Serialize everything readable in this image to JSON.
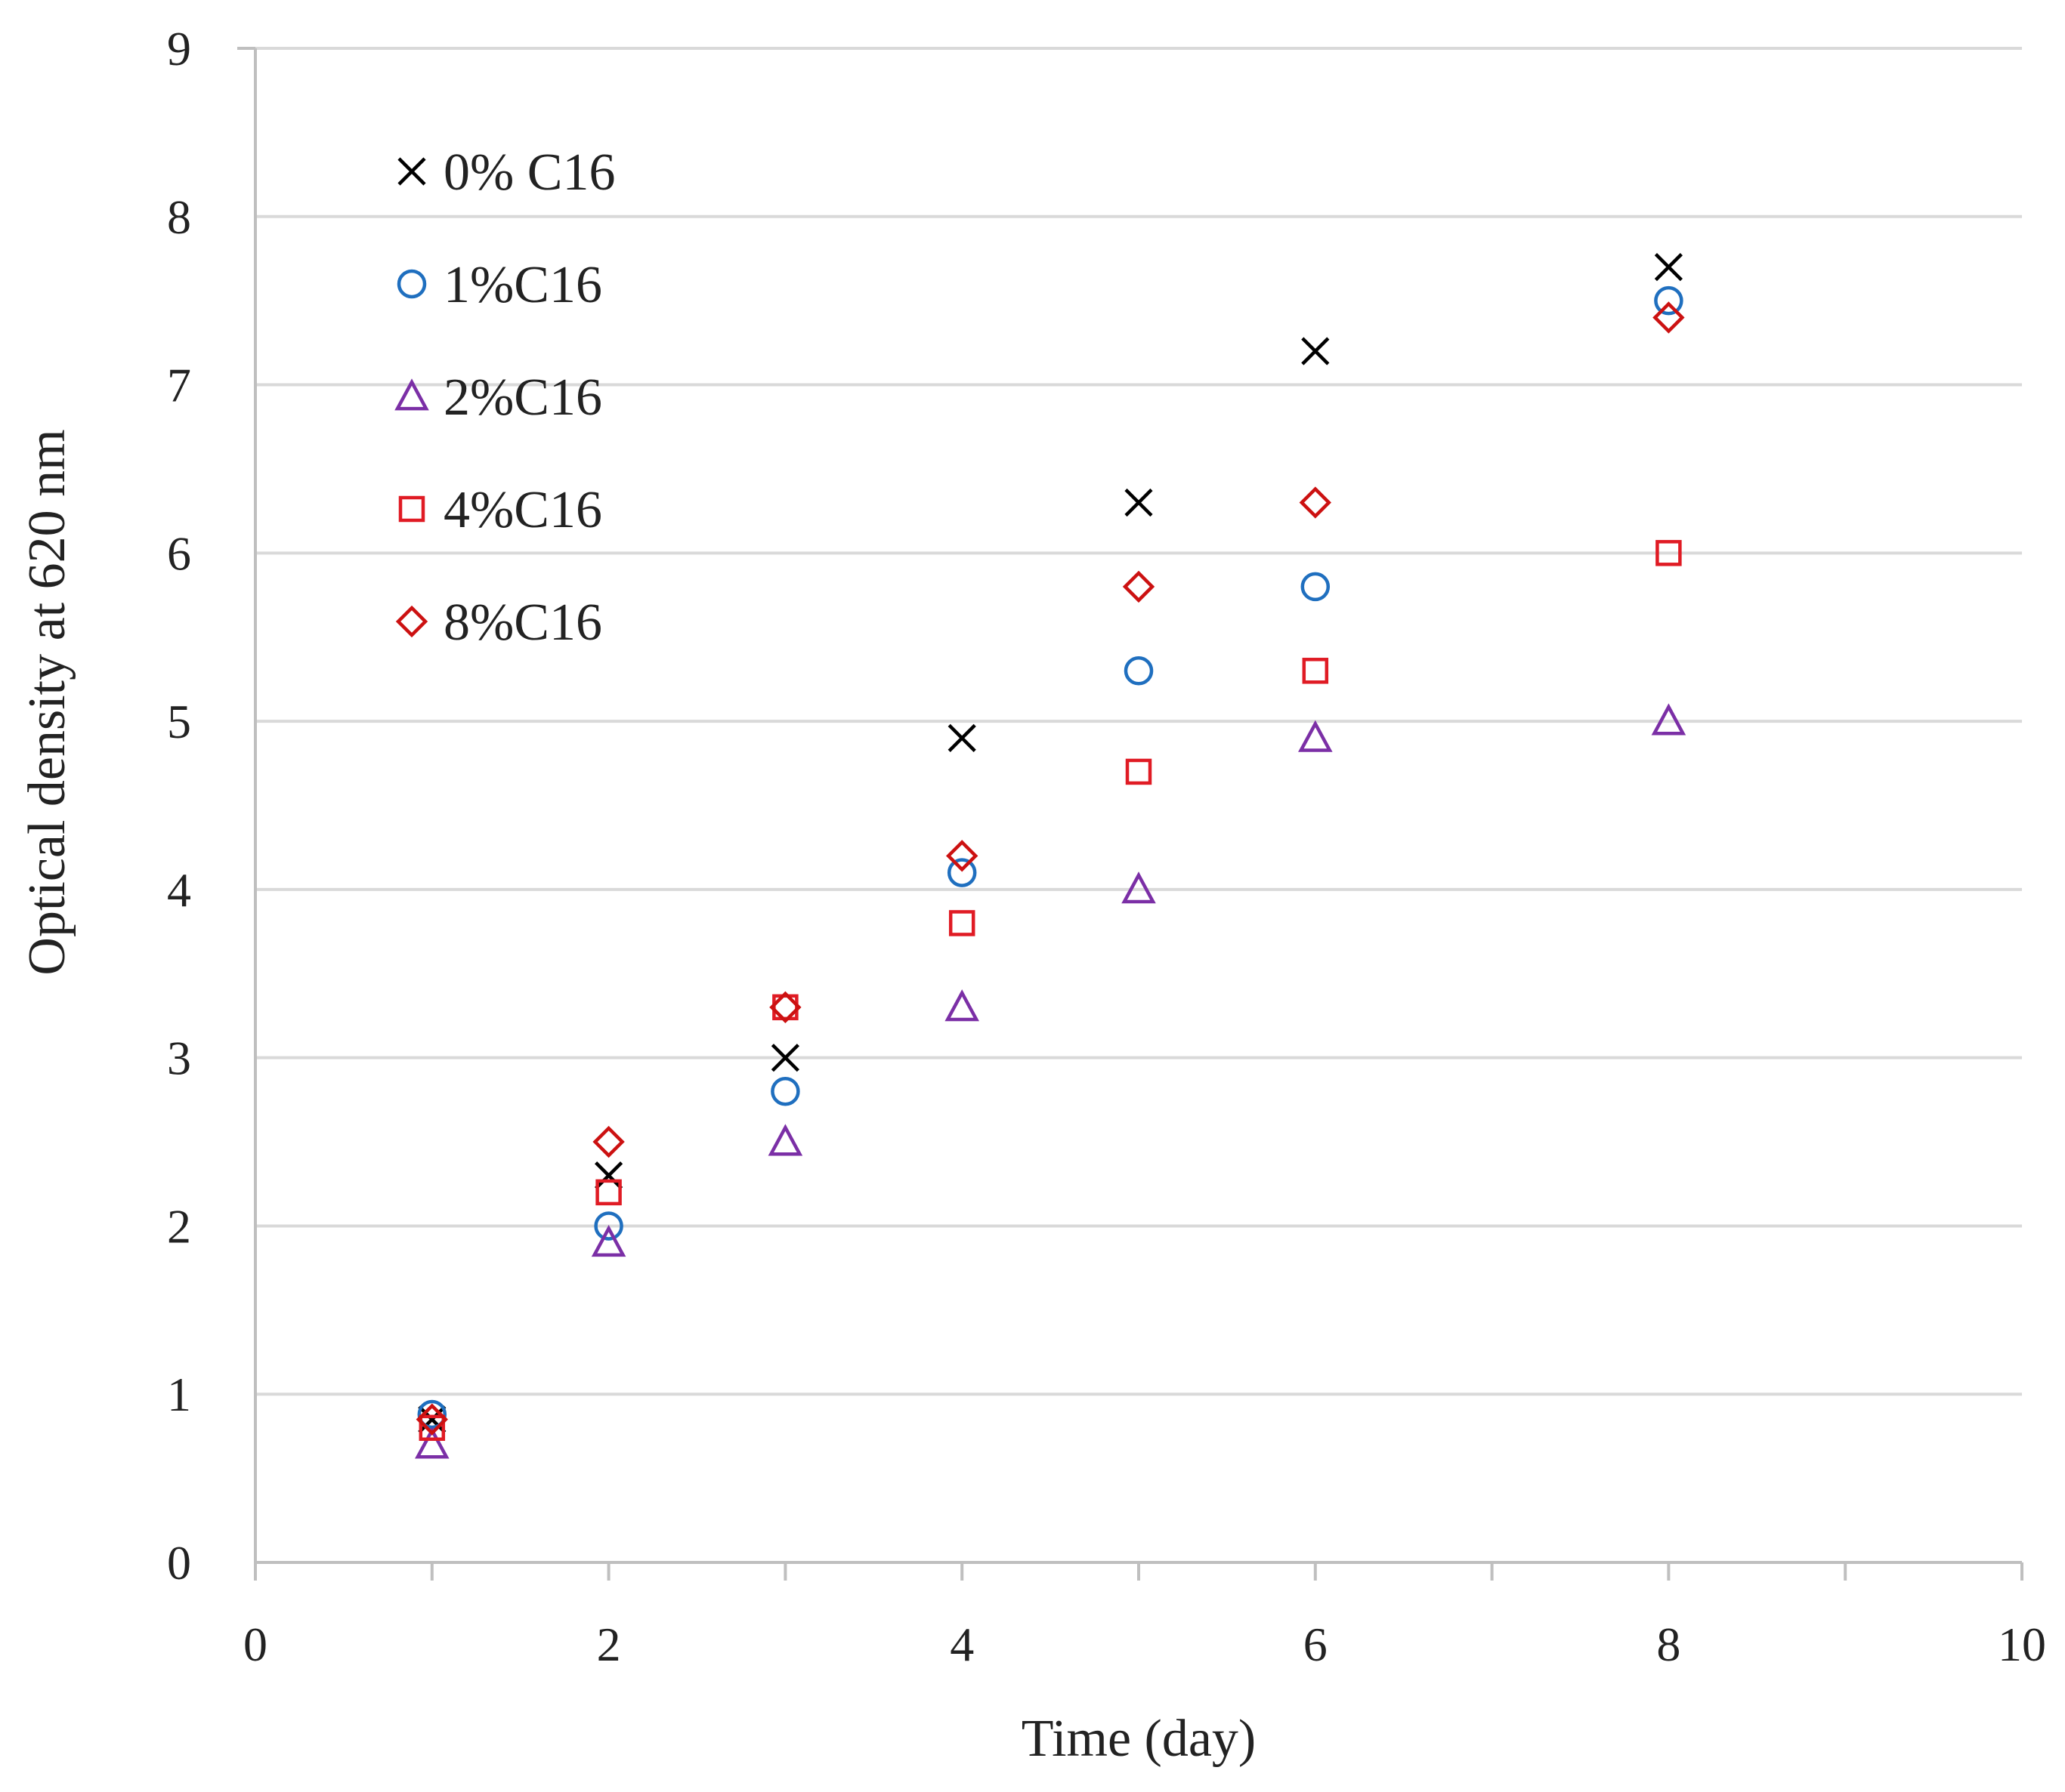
{
  "chart_data": {
    "type": "scatter",
    "title": "",
    "xlabel": "Time (day)",
    "ylabel": "Optical density at 620 nm",
    "xlim": [
      0,
      10
    ],
    "ylim": [
      0,
      9
    ],
    "x_ticks": [
      0,
      2,
      4,
      6,
      8,
      10
    ],
    "y_ticks": [
      0,
      1,
      2,
      3,
      4,
      5,
      6,
      7,
      8,
      9
    ],
    "grid": "horizontal",
    "legend_position": "top-left",
    "series": [
      {
        "name": "0% C16",
        "marker": "x",
        "color": "#000000",
        "x": [
          1,
          2,
          3,
          4,
          5,
          6,
          8
        ],
        "y": [
          0.85,
          2.3,
          3.0,
          4.9,
          6.3,
          7.2,
          7.7
        ]
      },
      {
        "name": "1%C16",
        "marker": "circle",
        "color": "#1f6fbf",
        "x": [
          1,
          2,
          3,
          4,
          5,
          6,
          8
        ],
        "y": [
          0.88,
          2.0,
          2.8,
          4.1,
          5.3,
          5.8,
          7.5
        ]
      },
      {
        "name": "2%C16",
        "marker": "triangle",
        "color": "#7b2fa6",
        "x": [
          1,
          2,
          3,
          4,
          5,
          6,
          8
        ],
        "y": [
          0.7,
          1.9,
          2.5,
          3.3,
          4.0,
          4.9,
          5.0
        ]
      },
      {
        "name": "4%C16",
        "marker": "square",
        "color": "#e01b24",
        "x": [
          1,
          2,
          3,
          4,
          5,
          6,
          8
        ],
        "y": [
          0.8,
          2.2,
          3.3,
          3.8,
          4.7,
          5.3,
          6.0
        ]
      },
      {
        "name": "8%C16",
        "marker": "diamond",
        "color": "#cc1111",
        "x": [
          1,
          2,
          3,
          4,
          5,
          6,
          8
        ],
        "y": [
          0.85,
          2.5,
          3.3,
          4.2,
          5.8,
          6.3,
          7.4
        ]
      }
    ]
  }
}
